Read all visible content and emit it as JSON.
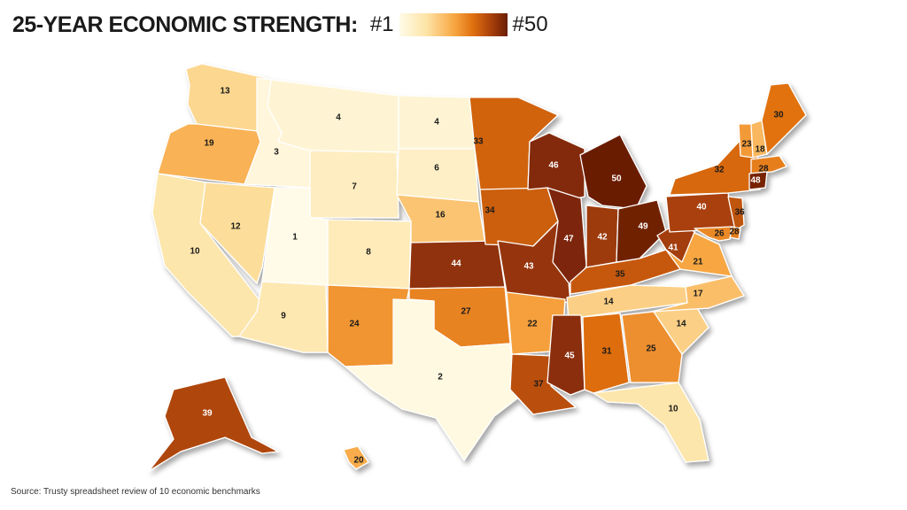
{
  "header": {
    "title": "25-YEAR ECONOMIC STRENGTH:",
    "legend_min": "#1",
    "legend_max": "#50"
  },
  "source": "Source: Trusty spreadsheet review of 10 economic benchmarks",
  "scale_colors": [
    "#fffbe8",
    "#fde4a6",
    "#f8a845",
    "#e0700f",
    "#a8400a",
    "#6a1d05"
  ],
  "states": [
    {
      "id": "WA",
      "rank": "13"
    },
    {
      "id": "OR",
      "rank": "19"
    },
    {
      "id": "CA",
      "rank": "10"
    },
    {
      "id": "ID",
      "rank": "3"
    },
    {
      "id": "NV",
      "rank": "12"
    },
    {
      "id": "MT",
      "rank": "4"
    },
    {
      "id": "WY",
      "rank": "7"
    },
    {
      "id": "UT",
      "rank": "1"
    },
    {
      "id": "AZ",
      "rank": "9"
    },
    {
      "id": "CO",
      "rank": "8"
    },
    {
      "id": "NM",
      "rank": "24"
    },
    {
      "id": "ND",
      "rank": "4"
    },
    {
      "id": "SD",
      "rank": "6"
    },
    {
      "id": "NE",
      "rank": "16"
    },
    {
      "id": "KS",
      "rank": "44"
    },
    {
      "id": "OK",
      "rank": "27"
    },
    {
      "id": "TX",
      "rank": "2"
    },
    {
      "id": "MN",
      "rank": "33"
    },
    {
      "id": "IA",
      "rank": "34"
    },
    {
      "id": "MO",
      "rank": "43"
    },
    {
      "id": "AR",
      "rank": "22"
    },
    {
      "id": "LA",
      "rank": "37"
    },
    {
      "id": "WI",
      "rank": "46"
    },
    {
      "id": "IL",
      "rank": "47"
    },
    {
      "id": "MI",
      "rank": "50"
    },
    {
      "id": "IN",
      "rank": "42"
    },
    {
      "id": "OH",
      "rank": "49"
    },
    {
      "id": "KY",
      "rank": "35"
    },
    {
      "id": "TN",
      "rank": "14"
    },
    {
      "id": "MS",
      "rank": "45"
    },
    {
      "id": "AL",
      "rank": "31"
    },
    {
      "id": "GA",
      "rank": "25"
    },
    {
      "id": "FL",
      "rank": "10"
    },
    {
      "id": "SC",
      "rank": "14"
    },
    {
      "id": "NC",
      "rank": "17"
    },
    {
      "id": "VA",
      "rank": "21"
    },
    {
      "id": "WV",
      "rank": "41"
    },
    {
      "id": "PA",
      "rank": "40"
    },
    {
      "id": "NY",
      "rank": "32"
    },
    {
      "id": "VT",
      "rank": "23"
    },
    {
      "id": "NH",
      "rank": "18"
    },
    {
      "id": "ME",
      "rank": "30"
    },
    {
      "id": "MA",
      "rank": "28"
    },
    {
      "id": "CT",
      "rank": "48"
    },
    {
      "id": "NJ",
      "rank": "36"
    },
    {
      "id": "DE",
      "rank": "28"
    },
    {
      "id": "MD",
      "rank": "26"
    },
    {
      "id": "AK",
      "rank": "39"
    },
    {
      "id": "HI",
      "rank": "20"
    }
  ]
}
